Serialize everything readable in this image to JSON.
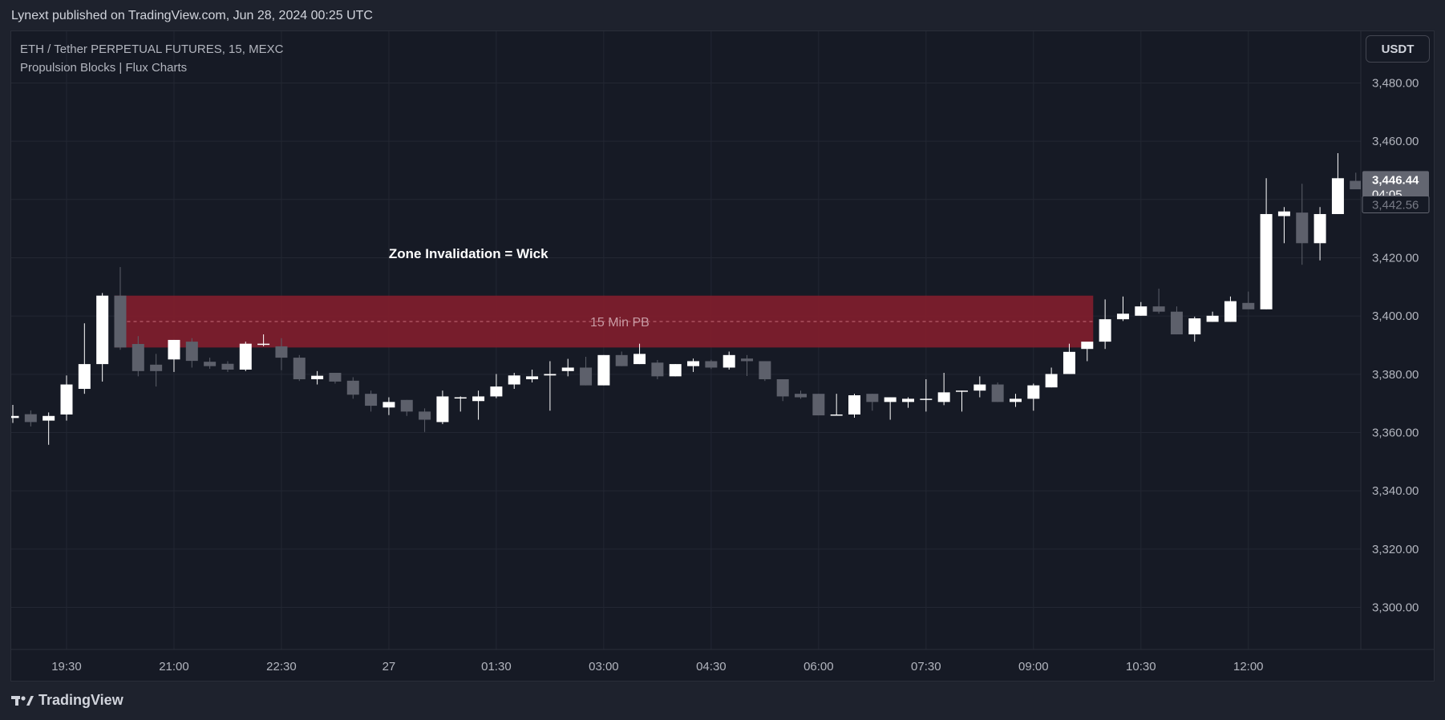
{
  "header": {
    "published_text": "Lynext published on TradingView.com, Jun 28, 2024 00:25 UTC"
  },
  "legend": {
    "symbol_line": "ETH / Tether PERPETUAL FUTURES, 15, MEXC",
    "indicator_line": "Propulsion Blocks | Flux Charts"
  },
  "currency_button": "USDT",
  "footer": {
    "logo_text": "TradingView"
  },
  "chart_data": {
    "type": "candlestick",
    "symbol": "ETH / Tether PERPETUAL FUTURES",
    "interval": "15",
    "exchange": "MEXC",
    "ylim": [
      3290,
      3490
    ],
    "y_ticks": [
      "3,300.00",
      "3,320.00",
      "3,340.00",
      "3,360.00",
      "3,380.00",
      "3,400.00",
      "3,420.00",
      "3,440.00",
      "3,460.00",
      "3,480.00"
    ],
    "y_tick_values": [
      3300,
      3320,
      3340,
      3360,
      3380,
      3400,
      3420,
      3440,
      3460,
      3480
    ],
    "x_ticks": [
      "19:30",
      "21:00",
      "22:30",
      "27",
      "01:30",
      "03:00",
      "04:30",
      "06:00",
      "07:30",
      "09:00",
      "10:30",
      "12:00"
    ],
    "x_tick_bar_index": [
      3,
      9,
      15,
      21,
      27,
      33,
      39,
      45,
      51,
      57,
      63,
      69
    ],
    "bar_colors": {
      "up": "#ffffff",
      "down": "#5d606b"
    },
    "candles": [
      {
        "o": 3365.0,
        "h": 3369.5,
        "l": 3363.3,
        "c": 3365.7
      },
      {
        "o": 3366.3,
        "h": 3367.6,
        "l": 3362.1,
        "c": 3363.6
      },
      {
        "o": 3364.1,
        "h": 3366.9,
        "l": 3355.8,
        "c": 3365.7
      },
      {
        "o": 3366.2,
        "h": 3379.6,
        "l": 3364.1,
        "c": 3376.5
      },
      {
        "o": 3375.0,
        "h": 3397.5,
        "l": 3373.3,
        "c": 3383.5
      },
      {
        "o": 3383.5,
        "h": 3407.9,
        "l": 3377.5,
        "c": 3407.0
      },
      {
        "o": 3407.0,
        "h": 3416.8,
        "l": 3388.4,
        "c": 3389.2
      },
      {
        "o": 3390.4,
        "h": 3393.1,
        "l": 3379.3,
        "c": 3381.1
      },
      {
        "o": 3383.3,
        "h": 3387.0,
        "l": 3375.8,
        "c": 3381.1
      },
      {
        "o": 3385.1,
        "h": 3391.8,
        "l": 3380.8,
        "c": 3391.8
      },
      {
        "o": 3391.2,
        "h": 3392.4,
        "l": 3382.3,
        "c": 3384.6
      },
      {
        "o": 3384.3,
        "h": 3385.7,
        "l": 3381.9,
        "c": 3382.8
      },
      {
        "o": 3383.6,
        "h": 3384.5,
        "l": 3380.8,
        "c": 3381.6
      },
      {
        "o": 3381.6,
        "h": 3391.2,
        "l": 3381.1,
        "c": 3390.5
      },
      {
        "o": 3390.5,
        "h": 3393.7,
        "l": 3389.6,
        "c": 3390.5
      },
      {
        "o": 3389.6,
        "h": 3392.4,
        "l": 3381.4,
        "c": 3385.7
      },
      {
        "o": 3385.7,
        "h": 3386.6,
        "l": 3377.7,
        "c": 3378.3
      },
      {
        "o": 3378.3,
        "h": 3381.1,
        "l": 3376.5,
        "c": 3379.5
      },
      {
        "o": 3380.5,
        "h": 3380.5,
        "l": 3376.8,
        "c": 3377.5
      },
      {
        "o": 3377.8,
        "h": 3379.0,
        "l": 3371.6,
        "c": 3373.0
      },
      {
        "o": 3373.3,
        "h": 3374.4,
        "l": 3367.2,
        "c": 3369.2
      },
      {
        "o": 3368.6,
        "h": 3372.1,
        "l": 3366.0,
        "c": 3370.5
      },
      {
        "o": 3371.2,
        "h": 3371.2,
        "l": 3365.7,
        "c": 3367.2
      },
      {
        "o": 3367.2,
        "h": 3368.3,
        "l": 3360.2,
        "c": 3364.4
      },
      {
        "o": 3363.6,
        "h": 3374.4,
        "l": 3362.9,
        "c": 3372.4
      },
      {
        "o": 3371.8,
        "h": 3372.4,
        "l": 3367.2,
        "c": 3372.1
      },
      {
        "o": 3370.8,
        "h": 3374.4,
        "l": 3364.4,
        "c": 3372.4
      },
      {
        "o": 3372.4,
        "h": 3380.1,
        "l": 3371.8,
        "c": 3375.8
      },
      {
        "o": 3376.5,
        "h": 3380.5,
        "l": 3375.0,
        "c": 3379.6
      },
      {
        "o": 3378.3,
        "h": 3381.6,
        "l": 3377.2,
        "c": 3379.3
      },
      {
        "o": 3379.6,
        "h": 3384.5,
        "l": 3367.5,
        "c": 3380.1
      },
      {
        "o": 3381.1,
        "h": 3385.3,
        "l": 3379.3,
        "c": 3382.3
      },
      {
        "o": 3382.3,
        "h": 3386.0,
        "l": 3376.2,
        "c": 3376.2
      },
      {
        "o": 3376.2,
        "h": 3386.6,
        "l": 3376.2,
        "c": 3386.6
      },
      {
        "o": 3386.6,
        "h": 3387.8,
        "l": 3382.8,
        "c": 3382.8
      },
      {
        "o": 3383.5,
        "h": 3390.5,
        "l": 3383.5,
        "c": 3387.0
      },
      {
        "o": 3384.0,
        "h": 3384.9,
        "l": 3378.3,
        "c": 3379.3
      },
      {
        "o": 3379.3,
        "h": 3383.5,
        "l": 3379.3,
        "c": 3383.5
      },
      {
        "o": 3382.8,
        "h": 3385.4,
        "l": 3380.8,
        "c": 3384.5
      },
      {
        "o": 3384.5,
        "h": 3385.0,
        "l": 3381.8,
        "c": 3382.3
      },
      {
        "o": 3382.3,
        "h": 3387.8,
        "l": 3381.6,
        "c": 3386.6
      },
      {
        "o": 3385.4,
        "h": 3386.6,
        "l": 3379.4,
        "c": 3384.5
      },
      {
        "o": 3384.5,
        "h": 3384.5,
        "l": 3377.7,
        "c": 3378.3
      },
      {
        "o": 3378.3,
        "h": 3378.3,
        "l": 3370.8,
        "c": 3372.4
      },
      {
        "o": 3373.3,
        "h": 3374.4,
        "l": 3371.6,
        "c": 3372.1
      },
      {
        "o": 3373.3,
        "h": 3373.3,
        "l": 3365.9,
        "c": 3365.9
      },
      {
        "o": 3365.9,
        "h": 3373.3,
        "l": 3365.9,
        "c": 3366.2
      },
      {
        "o": 3366.2,
        "h": 3373.3,
        "l": 3365.1,
        "c": 3372.8
      },
      {
        "o": 3373.3,
        "h": 3373.3,
        "l": 3367.5,
        "c": 3370.5
      },
      {
        "o": 3370.5,
        "h": 3372.1,
        "l": 3364.4,
        "c": 3372.1
      },
      {
        "o": 3370.5,
        "h": 3372.1,
        "l": 3368.5,
        "c": 3371.6
      },
      {
        "o": 3371.2,
        "h": 3378.3,
        "l": 3367.2,
        "c": 3371.6
      },
      {
        "o": 3370.5,
        "h": 3380.5,
        "l": 3369.4,
        "c": 3373.8
      },
      {
        "o": 3374.4,
        "h": 3374.4,
        "l": 3367.2,
        "c": 3374.4
      },
      {
        "o": 3374.4,
        "h": 3379.3,
        "l": 3372.1,
        "c": 3376.5
      },
      {
        "o": 3376.5,
        "h": 3377.2,
        "l": 3370.5,
        "c": 3370.5
      },
      {
        "o": 3370.5,
        "h": 3373.3,
        "l": 3368.8,
        "c": 3371.6
      },
      {
        "o": 3371.6,
        "h": 3376.8,
        "l": 3367.5,
        "c": 3376.2
      },
      {
        "o": 3375.5,
        "h": 3382.3,
        "l": 3375.5,
        "c": 3380.1
      },
      {
        "o": 3380.1,
        "h": 3390.5,
        "l": 3380.1,
        "c": 3387.7
      },
      {
        "o": 3388.7,
        "h": 3390.5,
        "l": 3384.5,
        "c": 3391.2
      },
      {
        "o": 3391.2,
        "h": 3405.7,
        "l": 3388.7,
        "c": 3398.9
      },
      {
        "o": 3398.9,
        "h": 3406.7,
        "l": 3398.3,
        "c": 3400.8
      },
      {
        "o": 3400.1,
        "h": 3404.8,
        "l": 3400.1,
        "c": 3403.3
      },
      {
        "o": 3403.3,
        "h": 3409.4,
        "l": 3400.8,
        "c": 3401.5
      },
      {
        "o": 3401.5,
        "h": 3403.3,
        "l": 3393.7,
        "c": 3393.7
      },
      {
        "o": 3393.7,
        "h": 3399.8,
        "l": 3391.2,
        "c": 3399.2
      },
      {
        "o": 3398.0,
        "h": 3401.5,
        "l": 3398.0,
        "c": 3400.1
      },
      {
        "o": 3398.0,
        "h": 3406.7,
        "l": 3398.0,
        "c": 3405.1
      },
      {
        "o": 3404.5,
        "h": 3408.4,
        "l": 3402.9,
        "c": 3402.3
      },
      {
        "o": 3402.3,
        "h": 3447.3,
        "l": 3402.3,
        "c": 3435.0
      },
      {
        "o": 3434.3,
        "h": 3437.4,
        "l": 3425.0,
        "c": 3435.9
      },
      {
        "o": 3435.5,
        "h": 3445.4,
        "l": 3417.6,
        "c": 3425.0
      },
      {
        "o": 3425.0,
        "h": 3437.4,
        "l": 3419.1,
        "c": 3435.0
      },
      {
        "o": 3435.0,
        "h": 3455.9,
        "l": 3435.0,
        "c": 3447.3
      },
      {
        "o": 3446.4,
        "h": 3449.2,
        "l": 3444.0,
        "c": 3443.5
      }
    ],
    "zone": {
      "label": "15 Min PB",
      "top": 3407.0,
      "bottom": 3389.2,
      "mid": 3398.1,
      "start_bar": 6,
      "end_bar": 60,
      "color": "#801d2c"
    },
    "annotation": {
      "text": "Zone Invalidation = Wick",
      "at_bar": 25,
      "price": 3421.5
    },
    "last_price": {
      "label": "3,446.44",
      "countdown": "04:05",
      "value": 3446.44
    },
    "secondary_price": {
      "label": "3,442.56",
      "value": 3442.56
    }
  }
}
